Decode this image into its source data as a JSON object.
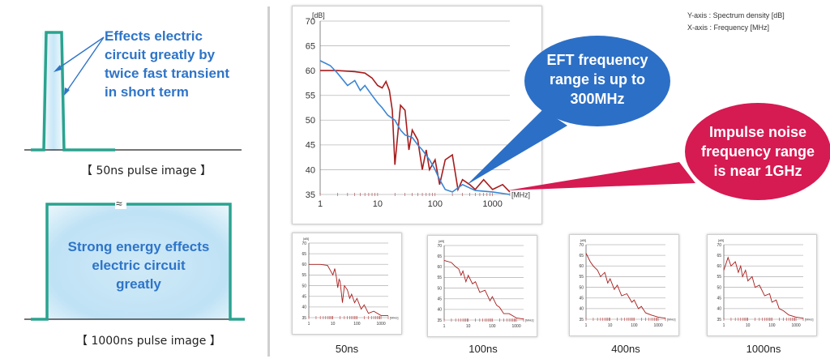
{
  "left": {
    "short_pulse": {
      "annotation": [
        "Effects electric",
        "circuit greatly by",
        "twice fast transient",
        "in short term"
      ],
      "caption": "【 50ns pulse image 】"
    },
    "long_pulse": {
      "annotation": [
        "Strong energy effects",
        "electric circuit",
        "greatly"
      ],
      "caption": "【 1000ns pulse image 】",
      "break_mark": "≈"
    }
  },
  "axis_notes": {
    "y": "Y-axis : Spectrum density [dB]",
    "x": "X-axis : Frequency [MHz]"
  },
  "bubbles": {
    "eft": {
      "lines": [
        "EFT frequency",
        "range is up to",
        "300MHz"
      ],
      "color": "#2c6fc6"
    },
    "impulse": {
      "lines": [
        "Impulse noise",
        "frequency range",
        "is near 1GHz"
      ],
      "color": "#d61a52"
    }
  },
  "colors": {
    "red_series": "#a81c1c",
    "blue_series": "#3a86d4",
    "pulse_line": "#2aa38f"
  },
  "chart_data": [
    {
      "type": "line",
      "ylabel": "[dB]",
      "xlabel": "[MHz]",
      "x_scale": "log",
      "xlim": [
        1,
        2000
      ],
      "ylim": [
        35,
        70
      ],
      "yticks": [
        35,
        40,
        45,
        50,
        55,
        60,
        65,
        70
      ],
      "xticks": [
        1,
        10,
        100,
        1000
      ],
      "grid": true,
      "series": [
        {
          "color": "#a81c1c",
          "x": [
            1,
            2,
            4,
            6,
            8,
            10,
            12,
            14,
            16,
            18,
            20,
            25,
            30,
            35,
            40,
            50,
            60,
            70,
            80,
            100,
            120,
            150,
            200,
            250,
            300,
            400,
            500,
            700,
            1000,
            1500,
            2000
          ],
          "y": [
            60,
            60,
            59.8,
            59.5,
            58.5,
            57,
            56.5,
            57.8,
            56,
            52,
            41,
            53,
            52,
            44,
            48,
            46,
            40,
            44,
            40,
            42,
            37,
            42,
            43,
            36,
            38,
            37,
            36,
            38,
            36,
            37,
            35.5
          ]
        },
        {
          "color": "#3a86d4",
          "x": [
            1,
            1.5,
            2,
            3,
            4,
            5,
            6,
            8,
            10,
            12,
            15,
            20,
            25,
            30,
            40,
            50,
            60,
            80,
            100,
            120,
            150,
            200,
            300,
            500,
            1000,
            2000
          ],
          "y": [
            62,
            61,
            59.5,
            57,
            58,
            56,
            57,
            55,
            53.5,
            52.5,
            51,
            50,
            48,
            47,
            46.5,
            45,
            44,
            42,
            40,
            38,
            36,
            35.5,
            37,
            35.8,
            35.5,
            35
          ]
        }
      ]
    },
    {
      "type": "line",
      "caption": "50ns",
      "ylabel": "[dB]",
      "xlabel": "[MHz]",
      "x_scale": "log",
      "xlim": [
        1,
        2000
      ],
      "ylim": [
        35,
        70
      ],
      "series": [
        {
          "color": "#a81c1c",
          "x": [
            1,
            3,
            6,
            8,
            10,
            12,
            14,
            16,
            18,
            20,
            25,
            30,
            40,
            50,
            60,
            80,
            100,
            150,
            200,
            300,
            500,
            1000,
            2000
          ],
          "y": [
            60,
            60,
            59.5,
            57,
            55,
            58,
            54,
            49,
            53,
            52,
            42,
            50,
            48,
            44,
            46,
            42,
            44,
            39,
            41,
            37,
            38,
            36,
            36
          ]
        }
      ]
    },
    {
      "type": "line",
      "caption": "100ns",
      "ylabel": "[dB]",
      "xlabel": "[MHz]",
      "x_scale": "log",
      "xlim": [
        1,
        2000
      ],
      "ylim": [
        35,
        70
      ],
      "series": [
        {
          "color": "#a81c1c",
          "x": [
            1,
            2,
            3,
            4,
            5,
            6,
            8,
            10,
            15,
            20,
            30,
            50,
            80,
            100,
            150,
            200,
            300,
            500,
            1000,
            2000
          ],
          "y": [
            63,
            62,
            60,
            59,
            56,
            58,
            53,
            56,
            52,
            53,
            48,
            49,
            44,
            46,
            42,
            41,
            38,
            38,
            36,
            35.5
          ]
        }
      ]
    },
    {
      "type": "line",
      "caption": "400ns",
      "ylabel": "[dB]",
      "xlabel": "[MHz]",
      "x_scale": "log",
      "xlim": [
        1,
        2000
      ],
      "ylim": [
        35,
        70
      ],
      "series": [
        {
          "color": "#a81c1c",
          "x": [
            1,
            1.5,
            2,
            3,
            4,
            6,
            8,
            10,
            15,
            20,
            30,
            50,
            80,
            100,
            150,
            200,
            300,
            500,
            1000,
            2000
          ],
          "y": [
            66,
            62,
            60,
            58,
            55,
            57,
            52,
            54,
            49,
            51,
            46,
            47,
            43,
            44,
            40,
            41,
            38,
            37,
            36,
            35.5
          ]
        }
      ]
    },
    {
      "type": "line",
      "caption": "1000ns",
      "ylabel": "[dB]",
      "xlabel": "[MHz]",
      "x_scale": "log",
      "xlim": [
        1,
        2000
      ],
      "ylim": [
        35,
        70
      ],
      "series": [
        {
          "color": "#a81c1c",
          "x": [
            1,
            1.5,
            2,
            3,
            4,
            5,
            6,
            8,
            10,
            15,
            20,
            30,
            50,
            80,
            100,
            150,
            200,
            300,
            500,
            1000,
            2000
          ],
          "y": [
            58,
            64,
            60,
            62,
            57,
            60,
            55,
            58,
            53,
            55,
            50,
            51,
            46,
            47,
            43,
            44,
            40,
            39,
            37,
            36,
            35.5
          ]
        }
      ]
    }
  ]
}
